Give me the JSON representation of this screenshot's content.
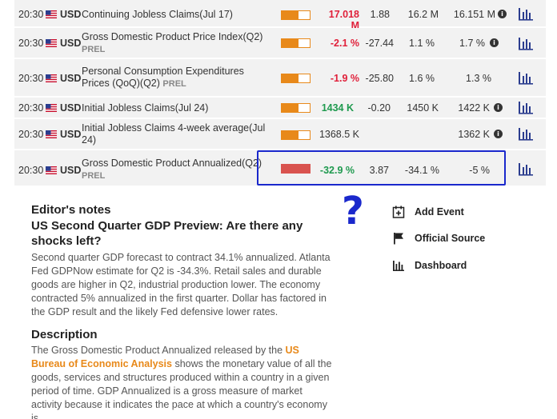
{
  "rows": [
    {
      "time": "20:30",
      "ccy": "USD",
      "name": "Continuing Jobless Claims(Jul 17)",
      "tag": "",
      "actual": "17.018 M",
      "actual_color": "red",
      "col1": "1.88",
      "col2": "16.2 M",
      "col3": "16.151 M",
      "impact": 0.6
    },
    {
      "time": "20:30",
      "ccy": "USD",
      "name": "Gross Domestic Product Price Index(Q2)",
      "tag": "PREL",
      "actual": "-2.1 %",
      "actual_color": "red",
      "col1": "-27.44",
      "col2": "1.1 %",
      "col3": "1.7 %",
      "impact": 0.6
    },
    {
      "time": "20:30",
      "ccy": "USD",
      "name": "Personal Consumption Expenditures Prices (QoQ)(Q2)",
      "tag": "PREL",
      "actual": "-1.9 %",
      "actual_color": "red",
      "col1": "-25.80",
      "col2": "1.6 %",
      "col3": "1.3 %",
      "impact": 0.6
    },
    {
      "time": "20:30",
      "ccy": "USD",
      "name": "Initial Jobless Claims(Jul 24)",
      "tag": "",
      "actual": "1434 K",
      "actual_color": "green",
      "col1": "-0.20",
      "col2": "1450 K",
      "col3": "1422 K",
      "impact": 0.6
    },
    {
      "time": "20:30",
      "ccy": "USD",
      "name": "Initial Jobless Claims 4-week average(Jul 24)",
      "tag": "",
      "actual": "1368.5 K",
      "actual_color": "neutral",
      "col1": "",
      "col2": "",
      "col3": "1362 K",
      "impact": 0.6
    },
    {
      "time": "20:30",
      "ccy": "USD",
      "name": "Gross Domestic Product Annualized(Q2)",
      "tag": "PREL",
      "actual": "-32.9 %",
      "actual_color": "green",
      "col1": "3.87",
      "col2": "-34.1 %",
      "col3": "-5 %",
      "impact": 1.0
    }
  ],
  "annotation": {
    "question_mark": "?"
  },
  "editor": {
    "heading": "Editor's notes",
    "title": "US Second Quarter GDP Preview: Are there any shocks left?",
    "body": "Second quarter GDP forecast to contract 34.1% annualized. Atlanta Fed GDPNow estimate for Q2 is -34.3%. Retail sales and durable goods are higher in Q2, industrial production lower. The economy contracted 5% annualized in the first quarter. Dollar has factored in the GDP result and the likely Fed defensive lower rates."
  },
  "description": {
    "heading": "Description",
    "before_link": "The Gross Domestic Product Annualized released by the ",
    "link": "US Bureau of Economic Analysis",
    "after_link": " shows the monetary value of all the goods, services and structures produced within a country in a given period of time. GDP Annualized is a gross measure of market activity because it indicates the pace at which a country's economy is"
  },
  "side_links": [
    {
      "label": "Add Event",
      "icon": "calendar-plus-icon"
    },
    {
      "label": "Official Source",
      "icon": "flag-icon"
    },
    {
      "label": "Dashboard",
      "icon": "bar-chart-icon"
    }
  ],
  "colors": {
    "accent": "#e8891a",
    "positive": "#1f9a4f",
    "negative": "#e0203a",
    "highlight": "#1a28cc"
  }
}
